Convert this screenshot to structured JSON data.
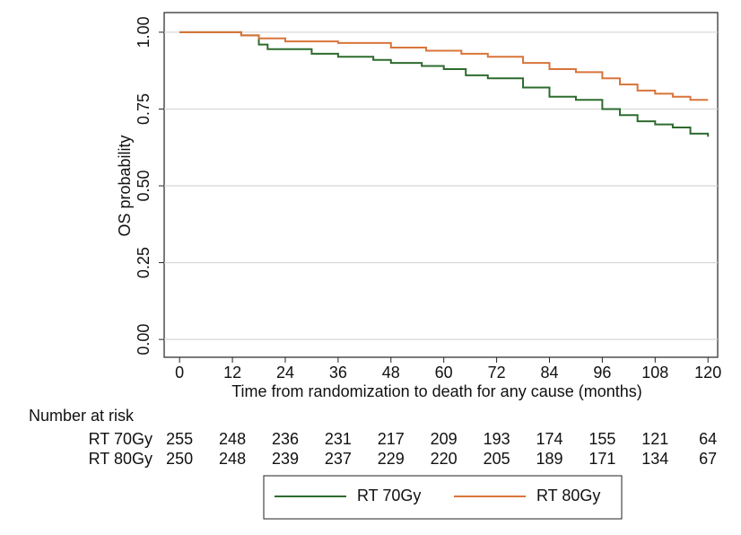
{
  "chart_data": {
    "type": "line",
    "step": "post",
    "x_label": "Time from randomization to death for any cause (months)",
    "y_label": "OS probability",
    "xlim": [
      -3.5,
      122.2
    ],
    "ylim": [
      -0.058,
      1.064
    ],
    "xticks": [
      0,
      12,
      24,
      36,
      48,
      60,
      72,
      84,
      96,
      108,
      120
    ],
    "yticks": [
      {
        "value": 0,
        "label": "0.00"
      },
      {
        "value": 0.25,
        "label": "0.25"
      },
      {
        "value": 0.5,
        "label": "0.50"
      },
      {
        "value": 0.75,
        "label": "0.75"
      },
      {
        "value": 1,
        "label": "1.00"
      }
    ],
    "grid": true,
    "series": [
      {
        "name": "RT 70Gy",
        "color": "#2e6b2e",
        "x": [
          0,
          10,
          14,
          18,
          20,
          30,
          36,
          44,
          48,
          55,
          60,
          65,
          70,
          78,
          84,
          90,
          96,
          100,
          104,
          108,
          112,
          116,
          120
        ],
        "values": [
          1.0,
          1.0,
          0.99,
          0.96,
          0.945,
          0.93,
          0.92,
          0.91,
          0.9,
          0.89,
          0.88,
          0.86,
          0.85,
          0.82,
          0.79,
          0.78,
          0.75,
          0.73,
          0.71,
          0.7,
          0.69,
          0.67,
          0.66
        ]
      },
      {
        "name": "RT 80Gy",
        "color": "#d9743a",
        "x": [
          0,
          14,
          18,
          24,
          36,
          48,
          56,
          64,
          70,
          78,
          84,
          90,
          96,
          100,
          104,
          108,
          112,
          116,
          120
        ],
        "values": [
          1.0,
          0.99,
          0.98,
          0.97,
          0.965,
          0.95,
          0.94,
          0.93,
          0.92,
          0.9,
          0.88,
          0.87,
          0.85,
          0.83,
          0.81,
          0.8,
          0.79,
          0.78,
          0.78
        ]
      }
    ],
    "risk_table": {
      "title": "Number at risk",
      "rows": [
        {
          "name": "RT 70Gy",
          "values": [
            255,
            248,
            236,
            231,
            217,
            209,
            193,
            174,
            155,
            121,
            64
          ]
        },
        {
          "name": "RT 80Gy",
          "values": [
            250,
            248,
            239,
            237,
            229,
            220,
            205,
            189,
            171,
            134,
            67
          ]
        }
      ]
    }
  }
}
